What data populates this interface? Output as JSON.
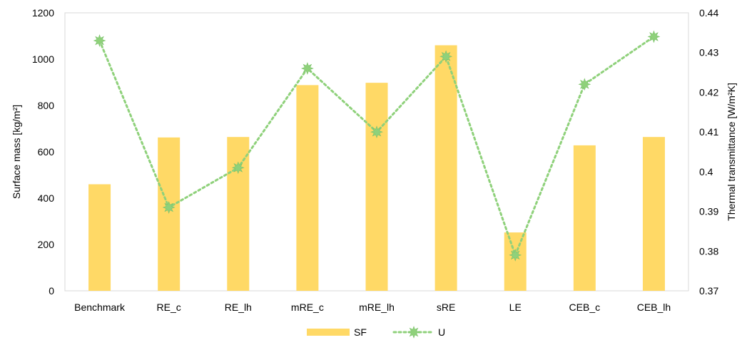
{
  "chart_data": {
    "type": "bar",
    "categories": [
      "Benchmark",
      "RE_c",
      "RE_lh",
      "mRE_c",
      "mRE_lh",
      "sRE",
      "LE",
      "CEB_c",
      "CEB_lh"
    ],
    "series": [
      {
        "name": "SF",
        "type": "bar",
        "axis": "left",
        "color": "#FFD966",
        "values": [
          460,
          662,
          664,
          888,
          898,
          1060,
          252,
          628,
          664
        ]
      },
      {
        "name": "U",
        "type": "line",
        "axis": "right",
        "color": "#8FD17B",
        "marker": "star",
        "line_style": "dotted",
        "values": [
          0.433,
          0.391,
          0.401,
          0.426,
          0.41,
          0.429,
          0.379,
          0.422,
          0.434
        ]
      }
    ],
    "ylabel": "Surface mass [kg/m²]",
    "ylabel_right": "Thermal transmittance [W/m²K]",
    "ylim": [
      0,
      1200
    ],
    "yticks": [
      0,
      200,
      400,
      600,
      800,
      1000,
      1200
    ],
    "ylim_right": [
      0.37,
      0.44
    ],
    "yticks_right": [
      "0.37",
      "0.38",
      "0.39",
      "0.4",
      "0.41",
      "0.42",
      "0.43",
      "0.44"
    ],
    "grid": false,
    "legend_position": "bottom"
  }
}
